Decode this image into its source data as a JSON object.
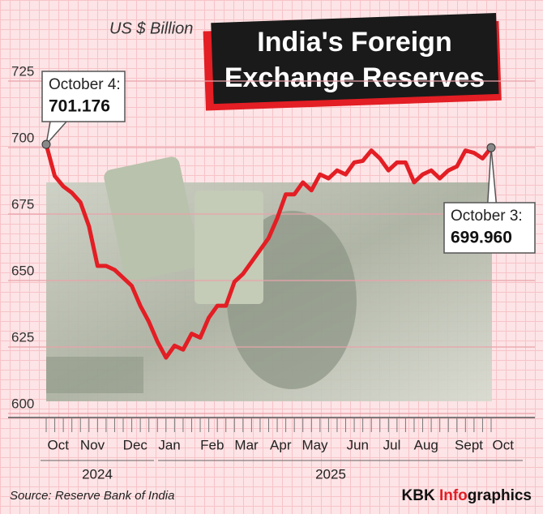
{
  "chart_data": {
    "type": "line",
    "title": "India's Foreign Exchange Reserves",
    "y_label": "US $ Billion",
    "source": "Source: Reserve Bank of India",
    "credit": [
      "KBK",
      "Info",
      "graphics"
    ],
    "annotations": [
      "October 4:",
      "October 3:"
    ],
    "color": "#e31e24",
    "categories": [
      "Oct",
      null,
      null,
      null,
      "Nov",
      null,
      null,
      null,
      null,
      "Dec",
      null,
      null,
      null,
      "Jan",
      null,
      null,
      null,
      null,
      "Feb",
      null,
      null,
      null,
      "Mar",
      null,
      null,
      null,
      "Apr",
      null,
      null,
      null,
      "May",
      null,
      null,
      null,
      null,
      "Jun",
      null,
      null,
      null,
      "Jul",
      null,
      null,
      null,
      "Aug",
      null,
      null,
      null,
      null,
      "Sept",
      null,
      null,
      null,
      "Oct"
    ],
    "x_groups": [
      "2024",
      "2025"
    ],
    "values": [
      701.176,
      689.3,
      685.4,
      683.0,
      679.4,
      670.4,
      655.5,
      655.5,
      654.0,
      651.0,
      648.0,
      640.5,
      634.5,
      627.0,
      621.0,
      625.5,
      624.0,
      630.0,
      628.5,
      636.0,
      640.5,
      640.5,
      649.5,
      652.5,
      657.0,
      661.5,
      666.0,
      673.4,
      682.4,
      682.4,
      686.9,
      683.9,
      689.9,
      688.4,
      691.4,
      689.9,
      694.4,
      695.0,
      698.9,
      695.9,
      691.4,
      694.4,
      694.4,
      686.9,
      689.9,
      691.4,
      688.4,
      691.4,
      692.9,
      698.9,
      698.0,
      695.9,
      699.96
    ],
    "value_labels": [
      "701.176",
      null,
      null,
      null,
      null,
      null,
      null,
      null,
      null,
      null,
      null,
      null,
      null,
      null,
      null,
      null,
      null,
      null,
      null,
      null,
      null,
      null,
      null,
      null,
      null,
      null,
      null,
      null,
      null,
      null,
      null,
      null,
      null,
      null,
      null,
      null,
      null,
      null,
      null,
      null,
      null,
      null,
      null,
      null,
      null,
      null,
      null,
      null,
      null,
      null,
      null,
      null,
      "699.960"
    ],
    "ylim": [
      600,
      725
    ],
    "yticks": [
      600,
      625,
      650,
      675,
      700,
      725
    ],
    "grid": true
  }
}
